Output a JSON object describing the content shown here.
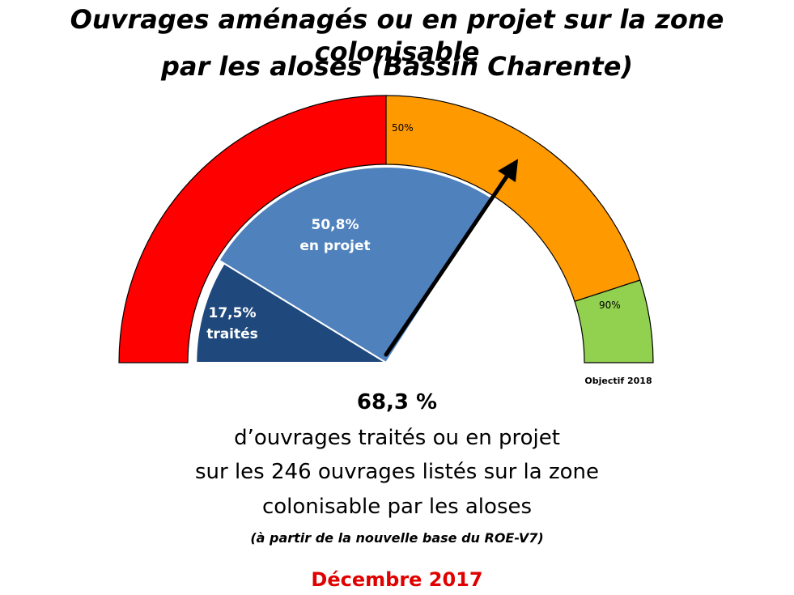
{
  "title": {
    "line1": "Ouvrages aménagés ou en projet sur la zone colonisable",
    "line2": "par les aloses (Bassin Charente)"
  },
  "chart_data": {
    "type": "gauge",
    "range": [
      0,
      100
    ],
    "gauge_bands": [
      {
        "from": 0,
        "to": 50,
        "color": "#ff0000"
      },
      {
        "from": 50,
        "to": 90,
        "color": "#ff9900"
      },
      {
        "from": 90,
        "to": 100,
        "color": "#92d050"
      }
    ],
    "band_labels": [
      {
        "value": 50,
        "label": "50%"
      },
      {
        "value": 90,
        "label": "90%"
      }
    ],
    "objective_label": "Objectif 2018",
    "series": [
      {
        "value": 17.5,
        "label": "17,5%",
        "sublabel": "traités",
        "color": "#1f497d"
      },
      {
        "value": 50.8,
        "label": "50,8%",
        "sublabel": "en projet",
        "color": "#4f81bd"
      }
    ],
    "pointer_value": 68.3
  },
  "summary": {
    "value": "68,3 %",
    "line1": "d’ouvrages traités ou en projet",
    "line2": "sur les 246 ouvrages listés sur la zone",
    "line3": "colonisable par les aloses",
    "note": "(à partir de la nouvelle base du ROE-V7)",
    "date": "Décembre 2017"
  }
}
